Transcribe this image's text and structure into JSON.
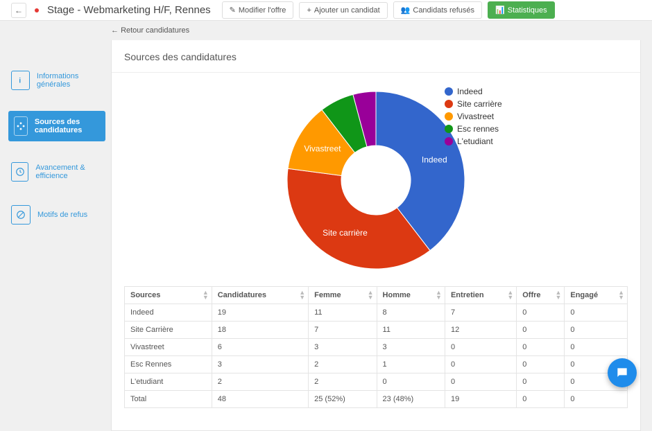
{
  "header": {
    "title": "Stage - Webmarketing H/F, Rennes",
    "buttons": {
      "modify": "Modifier l'offre",
      "add_candidate": "Ajouter un candidat",
      "rejected": "Candidats refusés",
      "stats": "Statistiques"
    }
  },
  "breadcrumb": {
    "back_label": "Retour candidatures"
  },
  "sidebar": {
    "items": [
      {
        "label": "Informations générales",
        "icon": "info",
        "active": false
      },
      {
        "label": "Sources des candidatures",
        "icon": "target",
        "active": true
      },
      {
        "label": "Avancement & efficience",
        "icon": "clock",
        "active": false
      },
      {
        "label": "Motifs de refus",
        "icon": "no",
        "active": false
      }
    ]
  },
  "section": {
    "title": "Sources des candidatures"
  },
  "chart": {
    "type": "donut",
    "inner_radius": 50,
    "outer_radius": 128,
    "background_color": "#ffffff",
    "label_fontsize": 12,
    "label_color": "#ffffff",
    "series": [
      {
        "label": "Indeed",
        "value": 19,
        "color": "#3366cc",
        "show_label": true
      },
      {
        "label": "Site carrière",
        "value": 18,
        "color": "#dc3912",
        "show_label": true
      },
      {
        "label": "Vivastreet",
        "value": 6,
        "color": "#ff9900",
        "show_label": true
      },
      {
        "label": "Esc rennes",
        "value": 3,
        "color": "#109618",
        "show_label": false
      },
      {
        "label": "L'etudiant",
        "value": 2,
        "color": "#990099",
        "show_label": false
      }
    ],
    "legend_position": "right",
    "legend_fontsize": 12
  },
  "table": {
    "columns": [
      "Sources",
      "Candidatures",
      "Femme",
      "Homme",
      "Entretien",
      "Offre",
      "Engagé"
    ],
    "rows": [
      [
        "Indeed",
        "19",
        "11",
        "8",
        "7",
        "0",
        "0"
      ],
      [
        "Site Carrière",
        "18",
        "7",
        "11",
        "12",
        "0",
        "0"
      ],
      [
        "Vivastreet",
        "6",
        "3",
        "3",
        "0",
        "0",
        "0"
      ],
      [
        "Esc Rennes",
        "3",
        "2",
        "1",
        "0",
        "0",
        "0"
      ],
      [
        "L'etudiant",
        "2",
        "2",
        "0",
        "0",
        "0",
        "0"
      ],
      [
        "Total",
        "48",
        "25 (52%)",
        "23 (48%)",
        "19",
        "0",
        "0"
      ]
    ]
  }
}
